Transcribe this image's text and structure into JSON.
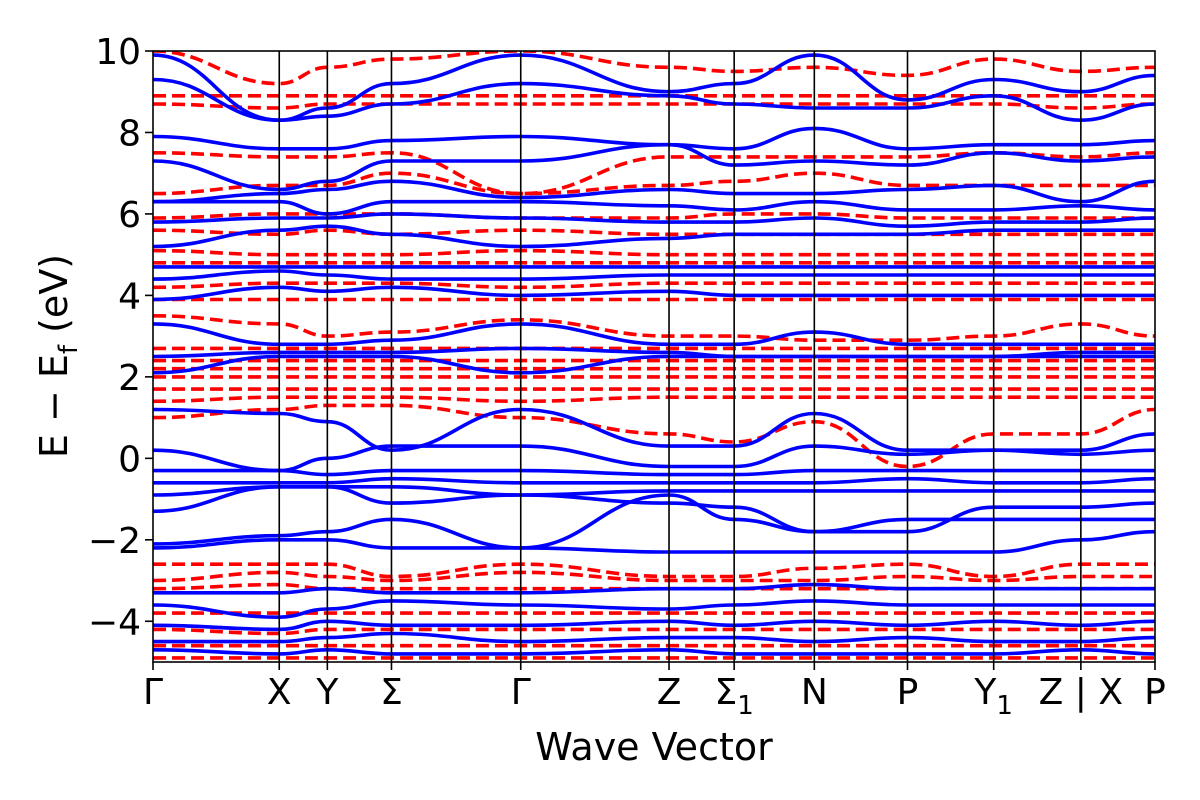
{
  "chart_data": {
    "type": "line",
    "title": "",
    "xlabel": "Wave Vector",
    "ylabel": "E − E",
    "ylabel_subscript": "f",
    "ylabel_unit": "(eV)",
    "ylim": [
      -5,
      10
    ],
    "yticks": [
      -4,
      -2,
      0,
      2,
      4,
      6,
      8,
      10
    ],
    "ytick_labels": [
      "−4",
      "−2",
      "0",
      "2",
      "4",
      "6",
      "8",
      "10"
    ],
    "grid": false,
    "legend": "none",
    "x_kpoint_positions": [
      0.0,
      0.126,
      0.174,
      0.238,
      0.367,
      0.515,
      0.58,
      0.66,
      0.753,
      0.839,
      0.926,
      1.0
    ],
    "x_kpoint_labels": [
      {
        "text": "Γ",
        "sub": ""
      },
      {
        "text": "X",
        "sub": ""
      },
      {
        "text": "Y",
        "sub": ""
      },
      {
        "text": "Σ",
        "sub": ""
      },
      {
        "text": "Γ",
        "sub": ""
      },
      {
        "text": "Z",
        "sub": ""
      },
      {
        "text": "Σ",
        "sub": "1"
      },
      {
        "text": "N",
        "sub": ""
      },
      {
        "text": "P",
        "sub": ""
      },
      {
        "text": "Y",
        "sub": "1"
      },
      {
        "text": "Z | X",
        "sub": ""
      },
      {
        "text": "P",
        "sub": ""
      }
    ],
    "series": [
      {
        "color": "#0000ff",
        "style": "solid",
        "bands_at_kpoints": [
          [
            9.9,
            8.3,
            8.6,
            9.2,
            9.9,
            9.0,
            9.2,
            9.9,
            8.8,
            9.3,
            9.0,
            9.4
          ],
          [
            9.3,
            8.3,
            8.4,
            8.7,
            9.2,
            8.9,
            8.7,
            8.6,
            8.6,
            8.9,
            8.3,
            8.7
          ],
          [
            7.9,
            7.6,
            7.6,
            7.8,
            7.9,
            7.7,
            7.6,
            8.1,
            7.6,
            7.7,
            7.7,
            7.8
          ],
          [
            7.3,
            6.6,
            6.8,
            7.3,
            7.3,
            7.7,
            7.2,
            7.3,
            7.2,
            7.5,
            7.3,
            7.4
          ],
          [
            6.3,
            6.5,
            6.6,
            6.8,
            6.4,
            6.6,
            6.5,
            6.5,
            6.6,
            6.7,
            6.3,
            6.8
          ],
          [
            6.3,
            6.3,
            6.0,
            6.3,
            6.3,
            6.2,
            6.1,
            6.3,
            6.1,
            6.1,
            6.2,
            6.1
          ],
          [
            5.8,
            5.9,
            5.9,
            6.0,
            5.9,
            5.8,
            5.8,
            5.9,
            5.7,
            5.8,
            5.8,
            5.9
          ],
          [
            5.2,
            5.6,
            5.7,
            5.5,
            5.2,
            5.4,
            5.5,
            5.5,
            5.5,
            5.6,
            5.6,
            5.6
          ],
          [
            4.7,
            4.7,
            4.7,
            4.7,
            4.7,
            4.7,
            4.7,
            4.7,
            4.7,
            4.7,
            4.7,
            4.7
          ],
          [
            4.4,
            4.6,
            4.5,
            4.4,
            4.4,
            4.5,
            4.5,
            4.5,
            4.5,
            4.5,
            4.5,
            4.5
          ],
          [
            3.9,
            4.2,
            4.1,
            4.2,
            4.0,
            4.1,
            4.0,
            4.0,
            4.0,
            4.0,
            4.0,
            4.0
          ],
          [
            3.3,
            2.8,
            2.8,
            2.9,
            3.3,
            2.8,
            2.8,
            3.1,
            2.8,
            2.8,
            2.8,
            2.8
          ],
          [
            2.5,
            2.6,
            2.6,
            2.6,
            2.7,
            2.6,
            2.5,
            2.5,
            2.5,
            2.5,
            2.6,
            2.6
          ],
          [
            2.1,
            2.5,
            2.5,
            2.5,
            2.1,
            2.5,
            2.5,
            2.5,
            2.5,
            2.5,
            2.5,
            2.5
          ],
          [
            1.2,
            1.1,
            0.9,
            0.2,
            1.2,
            0.3,
            0.3,
            1.1,
            0.2,
            0.2,
            0.2,
            0.6
          ],
          [
            0.2,
            -0.3,
            0.0,
            0.3,
            0.3,
            -0.2,
            -0.2,
            0.3,
            0.1,
            0.2,
            0.1,
            0.2
          ],
          [
            -0.3,
            -0.3,
            -0.4,
            -0.3,
            -0.3,
            -0.4,
            -0.4,
            -0.3,
            -0.3,
            -0.3,
            -0.3,
            -0.3
          ],
          [
            -0.6,
            -0.6,
            -0.6,
            -0.5,
            -0.6,
            -0.6,
            -0.6,
            -0.6,
            -0.5,
            -0.6,
            -0.6,
            -0.5
          ],
          [
            -0.9,
            -0.7,
            -0.7,
            -0.7,
            -0.9,
            -0.8,
            -0.8,
            -0.8,
            -0.8,
            -0.8,
            -0.8,
            -0.8
          ],
          [
            -1.3,
            -0.7,
            -0.7,
            -1.1,
            -0.9,
            -1.1,
            -1.2,
            -1.8,
            -1.8,
            -1.2,
            -1.2,
            -1.1
          ],
          [
            -2.1,
            -1.9,
            -1.8,
            -1.5,
            -2.2,
            -0.9,
            -1.5,
            -1.8,
            -1.5,
            -1.5,
            -1.5,
            -1.5
          ],
          [
            -2.2,
            -2.0,
            -2.0,
            -2.2,
            -2.2,
            -2.3,
            -2.3,
            -2.3,
            -2.3,
            -2.3,
            -2.0,
            -1.8
          ],
          [
            -3.3,
            -3.3,
            -3.2,
            -3.3,
            -3.3,
            -3.2,
            -3.2,
            -3.1,
            -3.2,
            -3.2,
            -3.2,
            -3.2
          ],
          [
            -3.6,
            -3.9,
            -3.7,
            -3.5,
            -3.6,
            -3.7,
            -3.6,
            -3.5,
            -3.6,
            -3.6,
            -3.6,
            -3.6
          ],
          [
            -4.1,
            -4.2,
            -4.0,
            -4.1,
            -4.1,
            -4.0,
            -4.1,
            -4.0,
            -4.1,
            -4.0,
            -4.1,
            -4.0
          ],
          [
            -4.5,
            -4.5,
            -4.4,
            -4.3,
            -4.5,
            -4.4,
            -4.4,
            -4.5,
            -4.4,
            -4.5,
            -4.5,
            -4.4
          ],
          [
            -4.7,
            -4.8,
            -4.7,
            -4.8,
            -4.8,
            -4.7,
            -4.8,
            -4.8,
            -4.8,
            -4.8,
            -4.7,
            -4.8
          ]
        ]
      },
      {
        "color": "#ff0000",
        "style": "dashed",
        "bands_at_kpoints": [
          [
            10.0,
            9.2,
            9.6,
            9.8,
            10.0,
            9.6,
            9.5,
            9.6,
            9.4,
            9.8,
            9.5,
            9.6
          ],
          [
            8.9,
            8.9,
            8.9,
            8.9,
            8.9,
            8.9,
            8.9,
            8.9,
            8.9,
            8.9,
            8.9,
            8.9
          ],
          [
            8.7,
            8.6,
            8.7,
            8.7,
            8.7,
            8.7,
            8.7,
            8.7,
            8.7,
            8.7,
            8.6,
            8.7
          ],
          [
            7.5,
            7.4,
            7.4,
            7.5,
            6.5,
            7.4,
            7.4,
            7.4,
            7.4,
            7.5,
            7.4,
            7.5
          ],
          [
            6.5,
            6.7,
            6.7,
            7.0,
            6.5,
            6.7,
            6.8,
            7.0,
            6.7,
            6.7,
            6.7,
            6.7
          ],
          [
            5.9,
            6.0,
            6.0,
            6.0,
            5.9,
            5.9,
            6.0,
            6.0,
            5.9,
            5.9,
            5.9,
            5.9
          ],
          [
            5.6,
            5.5,
            5.6,
            5.5,
            5.6,
            5.5,
            5.5,
            5.5,
            5.5,
            5.5,
            5.5,
            5.5
          ],
          [
            5.1,
            5.0,
            5.0,
            5.0,
            5.1,
            5.0,
            5.0,
            5.0,
            5.0,
            5.0,
            5.0,
            5.0
          ],
          [
            4.8,
            4.8,
            4.8,
            4.8,
            4.8,
            4.8,
            4.8,
            4.8,
            4.8,
            4.8,
            4.8,
            4.8
          ],
          [
            4.2,
            4.3,
            4.3,
            4.3,
            4.2,
            4.3,
            4.3,
            4.3,
            4.3,
            4.3,
            4.3,
            4.3
          ],
          [
            3.9,
            3.9,
            3.9,
            3.9,
            3.9,
            3.9,
            3.9,
            3.9,
            3.9,
            3.9,
            3.9,
            3.9
          ],
          [
            3.5,
            3.3,
            3.0,
            3.1,
            3.4,
            3.0,
            3.0,
            2.9,
            2.9,
            3.0,
            3.3,
            3.0
          ],
          [
            2.7,
            2.7,
            2.7,
            2.7,
            2.7,
            2.7,
            2.7,
            2.7,
            2.7,
            2.7,
            2.7,
            2.7
          ],
          [
            2.4,
            2.4,
            2.4,
            2.4,
            2.4,
            2.4,
            2.4,
            2.4,
            2.4,
            2.4,
            2.4,
            2.4
          ],
          [
            2.2,
            2.2,
            2.2,
            2.2,
            2.2,
            2.2,
            2.2,
            2.2,
            2.2,
            2.2,
            2.2,
            2.2
          ],
          [
            2.0,
            2.0,
            2.0,
            2.0,
            2.0,
            2.0,
            2.0,
            2.0,
            2.0,
            2.0,
            2.0,
            2.0
          ],
          [
            1.7,
            1.7,
            1.7,
            1.7,
            1.7,
            1.7,
            1.7,
            1.7,
            1.7,
            1.7,
            1.7,
            1.7
          ],
          [
            1.4,
            1.5,
            1.5,
            1.5,
            1.4,
            1.5,
            1.5,
            1.5,
            1.5,
            1.5,
            1.5,
            1.5
          ],
          [
            1.0,
            1.2,
            1.3,
            1.3,
            1.0,
            0.6,
            0.4,
            0.9,
            -0.2,
            0.6,
            0.6,
            1.2
          ],
          [
            -2.6,
            -2.6,
            -2.6,
            -2.9,
            -2.6,
            -2.9,
            -2.9,
            -2.7,
            -2.6,
            -2.9,
            -2.6,
            -2.6
          ],
          [
            -3.0,
            -2.8,
            -2.9,
            -3.0,
            -2.8,
            -3.0,
            -3.0,
            -3.0,
            -2.9,
            -3.0,
            -2.9,
            -2.9
          ],
          [
            -3.2,
            -3.1,
            -3.2,
            -3.2,
            -3.2,
            -3.2,
            -3.2,
            -3.2,
            -3.2,
            -3.2,
            -3.2,
            -3.2
          ],
          [
            -3.8,
            -3.8,
            -3.8,
            -3.8,
            -3.8,
            -3.8,
            -3.8,
            -3.8,
            -3.8,
            -3.8,
            -3.8,
            -3.8
          ],
          [
            -4.2,
            -4.3,
            -4.2,
            -4.2,
            -4.2,
            -4.2,
            -4.2,
            -4.2,
            -4.2,
            -4.2,
            -4.2,
            -4.2
          ],
          [
            -4.6,
            -4.6,
            -4.6,
            -4.6,
            -4.6,
            -4.6,
            -4.6,
            -4.6,
            -4.6,
            -4.6,
            -4.6,
            -4.6
          ],
          [
            -4.9,
            -4.9,
            -4.9,
            -4.9,
            -4.9,
            -4.9,
            -4.9,
            -4.9,
            -4.9,
            -4.9,
            -4.9,
            -4.9
          ]
        ]
      }
    ]
  }
}
